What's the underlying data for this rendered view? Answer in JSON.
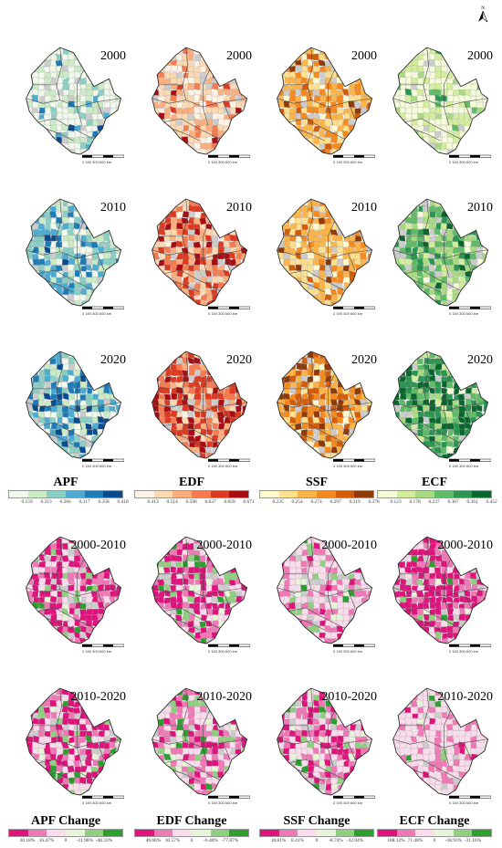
{
  "north_arrow": {
    "label": "N"
  },
  "scale_bar": {
    "labels": "0    150    300    600 km"
  },
  "panel_rows": [
    {
      "label": "2000",
      "kind": "level"
    },
    {
      "label": "2010",
      "kind": "level"
    },
    {
      "label": "2020",
      "kind": "level"
    },
    {
      "label": "2000-2010",
      "kind": "change"
    },
    {
      "label": "2010-2020",
      "kind": "change"
    }
  ],
  "indicators": [
    {
      "key": "APF",
      "palette": [
        "#f1f8ec",
        "#cbebc5",
        "#89cfc3",
        "#4cabd1",
        "#1d7cb8",
        "#094a8f"
      ]
    },
    {
      "key": "EDF",
      "palette": [
        "#fff3e6",
        "#fdd9b2",
        "#fcae7d",
        "#f77b4f",
        "#dd3a22",
        "#a80d13"
      ]
    },
    {
      "key": "SSF",
      "palette": [
        "#fffad0",
        "#fee08d",
        "#fdb54a",
        "#f58b1f",
        "#d35c0b",
        "#8f3a08"
      ]
    },
    {
      "key": "ECF",
      "palette": [
        "#f6fbd9",
        "#d3ee9b",
        "#a7da81",
        "#5fbb68",
        "#2a9650",
        "#09672e"
      ]
    }
  ],
  "change_palette": [
    "#e0137d",
    "#ef78b5",
    "#fbdcec",
    "#e6f5d8",
    "#8fd07e",
    "#2ca02c"
  ],
  "legends_level": [
    {
      "title": "APF",
      "ticks": [
        "0.159",
        "0.213",
        "0.266",
        "0.317",
        "0.358",
        "0.418"
      ]
    },
    {
      "title": "EDF",
      "ticks": [
        "0.413",
        "0.514",
        "0.596",
        "0.637",
        "0.659",
        "0.671"
      ]
    },
    {
      "title": "SSF",
      "ticks": [
        "0.235",
        "0.254",
        "0.274",
        "0.297",
        "0.319",
        "0.378"
      ]
    },
    {
      "title": "ECF",
      "ticks": [
        "0.123",
        "0.178",
        "0.237",
        "0.307",
        "0.361",
        "0.452"
      ]
    }
  ],
  "legends_change": [
    {
      "title": "APF Change",
      "ticks": [
        "30.18%",
        "16.47%",
        "0",
        "-11.98%",
        "-48.33%"
      ]
    },
    {
      "title": "EDF Change",
      "ticks": [
        "46.66%",
        "10.57%",
        "0",
        "-6.40%",
        "-77.87%"
      ]
    },
    {
      "title": "SSF Change",
      "ticks": [
        "18.81%",
        "8.41%",
        "0",
        "-8.74%",
        "-32.04%"
      ]
    },
    {
      "title": "ECF Change",
      "ticks": [
        "188.12%",
        "71.48%",
        "0",
        "-18.93%",
        "-31.16%"
      ]
    }
  ],
  "map_appearance": [
    [
      "light-low",
      "light-low",
      "mid-orange",
      "very-light-green"
    ],
    [
      "medium-blue",
      "medium-red",
      "medium-orange",
      "medium-green"
    ],
    [
      "dark-blue",
      "dark-red",
      "dark-orange",
      "dark-green"
    ],
    [
      "mostly-magenta",
      "magenta-with-green",
      "mostly-light-pink",
      "mostly-magenta"
    ],
    [
      "magenta-mixed-green",
      "pink-green-mixed",
      "magenta-mixed",
      "mostly-light-pink"
    ]
  ]
}
